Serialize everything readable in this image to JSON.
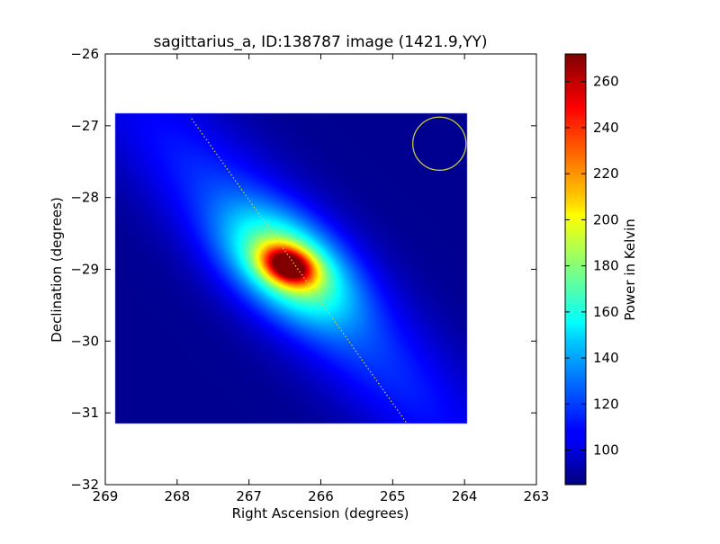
{
  "chart_data": {
    "type": "heatmap",
    "title": "sagittarius_a, ID:138787 image (1421.9,YY)",
    "xlabel": "Right Ascension (degrees)",
    "ylabel": "Declination (degrees)",
    "xlim": [
      269,
      263
    ],
    "ylim": [
      -32,
      -26
    ],
    "x_ticks": [
      "269",
      "268",
      "267",
      "266",
      "265",
      "264",
      "263"
    ],
    "y_ticks": [
      "−26",
      "−27",
      "−28",
      "−29",
      "−30",
      "−31",
      "−32"
    ],
    "colorbar": {
      "label": "Power in Kelvin",
      "range": [
        85,
        272
      ],
      "ticks": [
        "100",
        "120",
        "140",
        "160",
        "180",
        "200",
        "220",
        "240",
        "260"
      ],
      "colormap": "jet"
    },
    "map": {
      "ra_range": [
        268.86,
        263.96
      ],
      "dec_range": [
        -31.15,
        -26.83
      ],
      "background_k": 88,
      "peak_k": 272,
      "peak_position": {
        "ra": 266.45,
        "dec": -28.95
      },
      "sources": [
        {
          "ra": 266.45,
          "dec": -28.95,
          "amplitude_k": 118,
          "sigma_major_deg": 0.26,
          "sigma_minor_deg": 0.17,
          "angle_deg": -22
        },
        {
          "ra": 266.45,
          "dec": -28.95,
          "amplitude_k": 72,
          "sigma_major_deg": 0.68,
          "sigma_minor_deg": 0.42,
          "angle_deg": -35
        },
        {
          "ra": 266.3,
          "dec": -29.1,
          "amplitude_k": 34,
          "sigma_major_deg": 2.9,
          "sigma_minor_deg": 0.55,
          "angle_deg": -46
        }
      ]
    },
    "overlays": {
      "galactic_plane_line": {
        "color": "#d4d23a",
        "style": "dotted",
        "from": {
          "ra": 267.8,
          "dec": -26.9
        },
        "to": {
          "ra": 264.8,
          "dec": -31.15
        }
      },
      "beam_circle": {
        "color": "#c8c83a",
        "center": {
          "ra": 264.35,
          "dec": -27.25
        },
        "radius_deg": 0.37
      }
    }
  }
}
